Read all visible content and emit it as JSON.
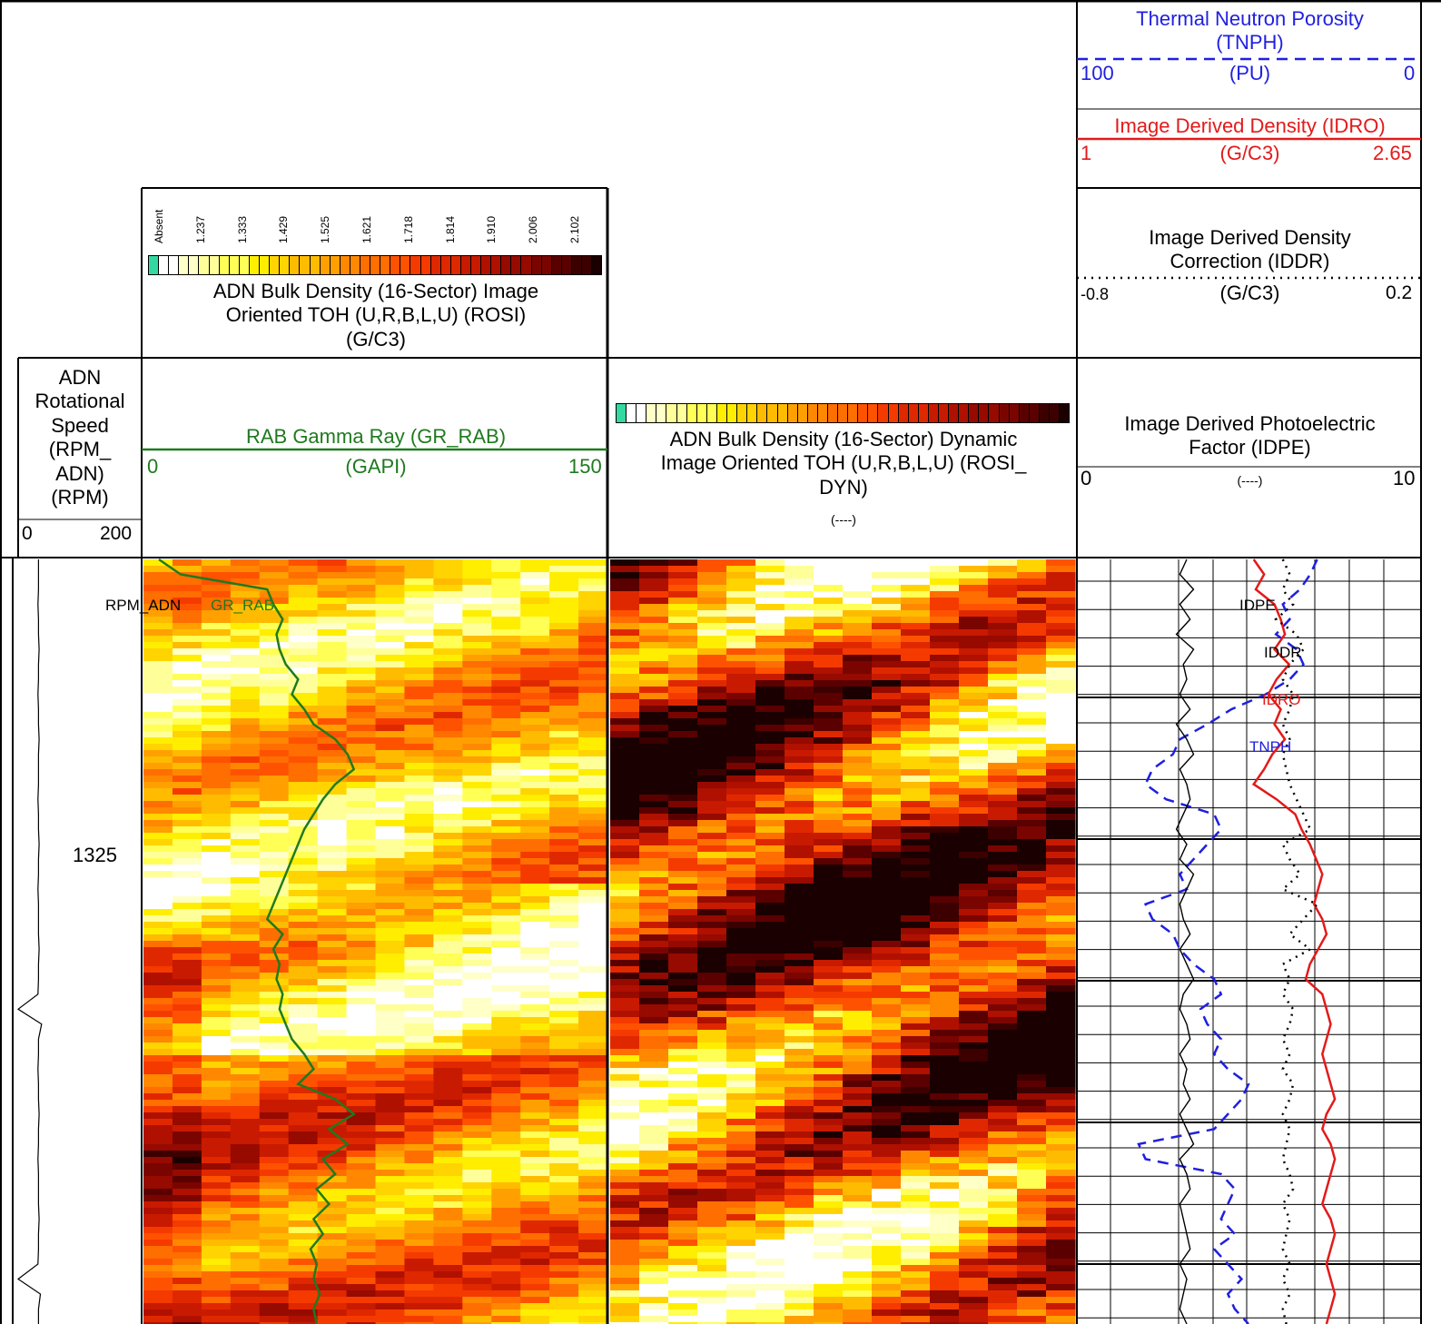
{
  "colors": {
    "tnph": "#1f1fe0",
    "idro": "#e31a1a",
    "gr": "#1f7a1f",
    "absent": "#33d9a0",
    "iddr": "#000000",
    "idpe": "#000000"
  },
  "headers": {
    "rpm": {
      "title": "ADN\nRotational\nSpeed\n(RPM_\nADN)\n(RPM)",
      "min": "0",
      "max": "200"
    },
    "rosi": {
      "title": "ADN Bulk Density (16-Sector) Image\nOriented TOH (U,R,B,L,U) (ROSI)\n(G/C3)",
      "ticks": [
        "Absent",
        "1.237",
        "1.333",
        "1.429",
        "1.525",
        "1.621",
        "1.718",
        "1.814",
        "1.910",
        "2.006",
        "2.102"
      ]
    },
    "gr": {
      "title": "RAB Gamma Ray (GR_RAB)",
      "unit": "(GAPI)",
      "min": "0",
      "max": "150"
    },
    "rosidyn": {
      "title": "ADN Bulk Density (16-Sector) Dynamic\nImage Oriented TOH (U,R,B,L,U) (ROSI_\nDYN)",
      "unit": "(----)"
    },
    "tnph": {
      "title": "Thermal Neutron Porosity\n(TNPH)",
      "unit": "(PU)",
      "min": "100",
      "max": "0"
    },
    "idro": {
      "title": "Image Derived Density (IDRO)",
      "unit": "(G/C3)",
      "min": "1",
      "max": "2.65"
    },
    "iddr": {
      "title": "Image Derived Density\nCorrection (IDDR)",
      "unit": "(G/C3)",
      "min": "-0.8",
      "max": "0.2"
    },
    "idpe": {
      "title": "Image Derived Photoelectric\nFactor (IDPE)",
      "unit": "(----)",
      "min": "0",
      "max": "10"
    }
  },
  "depth_label": "1325",
  "flags": {
    "rpm": "RPM_ADN",
    "gr": "GR_RAB",
    "idpe": "IDPE",
    "iddr": "IDDR",
    "idro": "IDRO",
    "tnph": "TNPH"
  },
  "chart_data": {
    "type": "line",
    "depth_axis": {
      "marked_depth": 1325,
      "direction": "down"
    },
    "series": [
      {
        "name": "RPM_ADN",
        "unit": "RPM",
        "scale": [
          0,
          200
        ],
        "values": [
          33,
          33,
          33,
          32,
          33,
          33,
          34,
          33,
          33,
          32,
          33,
          33,
          34,
          33,
          33,
          33,
          32,
          33,
          33,
          34,
          33,
          33,
          32,
          33,
          33,
          33,
          34,
          33,
          33,
          32,
          0,
          38,
          33,
          33,
          32,
          33,
          33,
          34,
          33,
          33,
          32,
          33,
          33,
          33,
          34,
          33,
          33,
          32,
          0,
          36,
          33,
          33
        ]
      },
      {
        "name": "GR_RAB",
        "unit": "GAPI",
        "scale": [
          0,
          150
        ],
        "values": [
          5,
          12,
          40,
          42,
          45,
          43,
          44,
          46,
          50,
          48,
          52,
          55,
          62,
          66,
          68,
          62,
          58,
          55,
          52,
          50,
          48,
          46,
          44,
          42,
          40,
          45,
          42,
          44,
          43,
          45,
          44,
          46,
          48,
          52,
          55,
          50,
          62,
          68,
          60,
          66,
          58,
          62,
          56,
          60,
          55,
          58,
          54,
          56,
          55,
          57,
          55,
          56
        ]
      },
      {
        "name": "TNPH",
        "unit": "PU",
        "scale": [
          100,
          0
        ],
        "values": [
          30,
          32,
          35,
          40,
          38,
          42,
          36,
          34,
          38,
          45,
          55,
          62,
          70,
          72,
          78,
          80,
          74,
          60,
          58,
          62,
          66,
          70,
          68,
          80,
          78,
          72,
          70,
          66,
          60,
          58,
          64,
          62,
          58,
          60,
          56,
          50,
          52,
          56,
          60,
          82,
          80,
          58,
          54,
          56,
          58,
          54,
          60,
          56,
          52,
          56,
          54,
          50
        ]
      },
      {
        "name": "IDRO",
        "unit": "G/C3",
        "scale": [
          1,
          2.65
        ],
        "values": [
          1.85,
          1.9,
          1.86,
          1.95,
          1.98,
          2.0,
          1.95,
          2.02,
          1.96,
          1.92,
          1.98,
          1.95,
          2.0,
          1.94,
          1.9,
          1.85,
          1.96,
          2.05,
          2.08,
          2.12,
          2.15,
          2.18,
          2.16,
          2.14,
          2.18,
          2.2,
          2.16,
          2.12,
          2.1,
          2.18,
          2.2,
          2.22,
          2.2,
          2.18,
          2.2,
          2.22,
          2.24,
          2.2,
          2.18,
          2.22,
          2.24,
          2.22,
          2.2,
          2.18,
          2.22,
          2.24,
          2.22,
          2.2,
          2.22,
          2.24,
          2.22,
          2.2
        ]
      },
      {
        "name": "IDDR",
        "unit": "G/C3",
        "scale": [
          -0.8,
          0.2
        ],
        "values": [
          -0.2,
          -0.18,
          -0.2,
          -0.17,
          -0.22,
          -0.16,
          -0.14,
          -0.18,
          -0.2,
          -0.17,
          -0.18,
          -0.2,
          -0.18,
          -0.2,
          -0.19,
          -0.18,
          -0.16,
          -0.14,
          -0.12,
          -0.2,
          -0.18,
          -0.15,
          -0.2,
          -0.1,
          -0.14,
          -0.18,
          -0.12,
          -0.2,
          -0.18,
          -0.2,
          -0.17,
          -0.18,
          -0.2,
          -0.18,
          -0.2,
          -0.17,
          -0.18,
          -0.2,
          -0.18,
          -0.19,
          -0.2,
          -0.18,
          -0.17,
          -0.2,
          -0.18,
          -0.19,
          -0.2,
          -0.18,
          -0.2,
          -0.18,
          -0.2,
          -0.19
        ]
      },
      {
        "name": "IDPE",
        "unit": "----",
        "scale": [
          0,
          10
        ],
        "values": [
          3.2,
          3.0,
          3.4,
          3.0,
          3.3,
          2.9,
          3.4,
          3.1,
          3.2,
          3.0,
          3.3,
          2.9,
          3.2,
          3.4,
          3.0,
          3.2,
          3.3,
          3.1,
          2.9,
          3.2,
          3.0,
          3.4,
          3.2,
          3.0,
          3.1,
          3.3,
          3.0,
          3.2,
          3.4,
          3.1,
          3.0,
          3.2,
          3.3,
          3.0,
          3.2,
          3.1,
          3.3,
          3.0,
          3.2,
          3.4,
          3.0,
          3.2,
          3.3,
          3.0,
          3.1,
          3.2,
          3.3,
          3.0,
          3.2,
          3.1,
          3.0,
          3.2
        ]
      }
    ],
    "images": [
      {
        "name": "ROSI",
        "unit": "G/C3",
        "sectors": 16,
        "scale": [
          1.237,
          2.102
        ]
      },
      {
        "name": "ROSI_DYN",
        "unit": "----",
        "sectors": 16
      }
    ],
    "palette": [
      "#ffffff",
      "#ffffc8",
      "#ffff99",
      "#ffff55",
      "#ffee00",
      "#ffd400",
      "#ffbb00",
      "#ffa000",
      "#ff8800",
      "#ff6e00",
      "#ff5200",
      "#f53a00",
      "#e02800",
      "#c81a00",
      "#b01000",
      "#960a00",
      "#7a0500",
      "#5a0000",
      "#3c0000",
      "#1a0000"
    ]
  }
}
